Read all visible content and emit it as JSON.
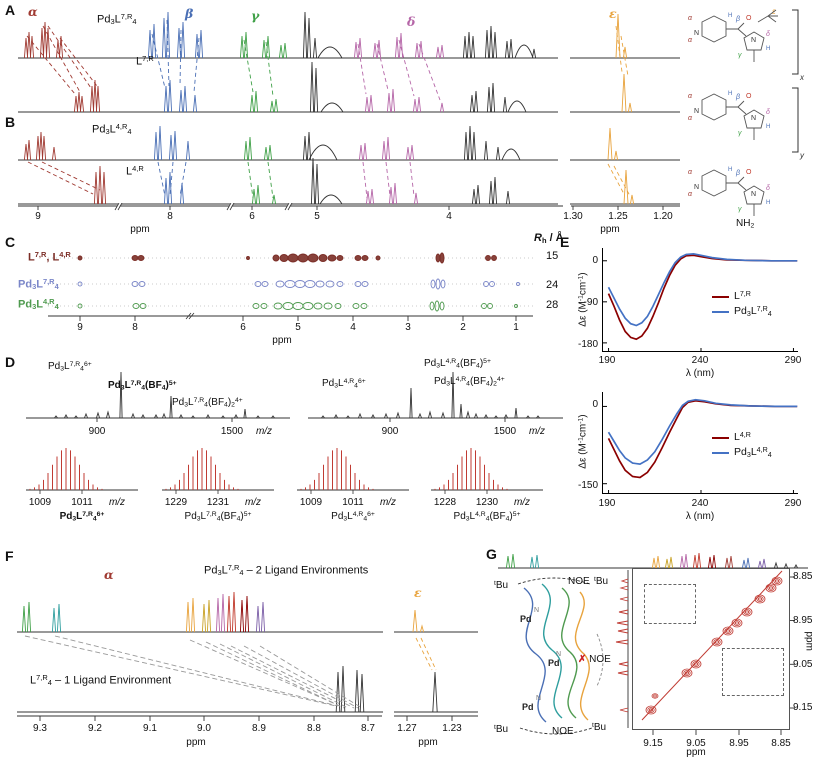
{
  "colors": {
    "alpha_red": "#a03a32",
    "beta_blue": "#4a6fb5",
    "gamma_green": "#3fa047",
    "delta_magenta": "#b565a7",
    "epsilon_orange": "#e8a33d",
    "ligand_cd_red": "#8b0000",
    "cage_cd_blue": "#4472c4",
    "dosy_ligand": "#7b2d26",
    "dosy_cage7": "#7a86c8",
    "dosy_cage4": "#4f9a4f",
    "noesy_red": "#c03b33"
  },
  "greek": {
    "alpha": "α",
    "beta": "β",
    "gamma": "γ",
    "delta": "δ",
    "epsilon": "ε"
  },
  "panels": {
    "a": "A",
    "b": "B",
    "c": "C",
    "d": "D",
    "e": "E",
    "f": "F",
    "g": "G"
  },
  "panelA": {
    "cage": "Pd<sub>3</sub>L<sup>7,R</sup><sub>4</sub>",
    "ligand": "L<sup>7,R</sup>"
  },
  "panelB": {
    "cage": "Pd<sub>3</sub>L<sup>4,R</sup><sub>4</sub>",
    "ligand": "L<sup>4,R</sup>"
  },
  "nmr_axis": {
    "ticks": [
      "9",
      "8",
      "6",
      "5",
      "4"
    ],
    "unit": "ppm",
    "eps_ticks": [
      "1.30",
      "1.25",
      "1.20"
    ]
  },
  "structure": {
    "alpha": "α",
    "beta": "β",
    "gamma": "γ",
    "delta": "δ",
    "epsilon": "ε",
    "H": "H",
    "N": "N",
    "O": "O",
    "x": "x",
    "y": "y",
    "nh2": "NH<sub>2</sub>"
  },
  "panelC": {
    "header": "<i>R</i><sub>h</sub> / Å",
    "rows": [
      {
        "label": "L<sup>7,R</sup>, L<sup>4,R</sup>",
        "rh": "15"
      },
      {
        "label": "Pd<sub>3</sub>L<sup>7,R</sup><sub>4</sub>",
        "rh": "24"
      },
      {
        "label": "Pd<sub>3</sub>L<sup>4,R</sup><sub>4</sub>",
        "rh": "28"
      }
    ],
    "ticks": [
      "9",
      "8",
      "6",
      "5",
      "4",
      "3",
      "2",
      "1"
    ],
    "unit": "ppm"
  },
  "panelD": {
    "spec1_labels": [
      "Pd<sub>3</sub>L<sup>7,R</sup><sub>4</sub><sup>6+</sup>",
      "Pd<sub>3</sub>L<sup>7,R</sup><sub>4</sub>(BF<sub>4</sub>)<sup>5+</sup>",
      "Pd<sub>3</sub>L<sup>7,R</sup><sub>4</sub>(BF<sub>4</sub>)<sub>2</sub><sup>4+</sup>"
    ],
    "spec2_labels": [
      "Pd<sub>3</sub>L<sup>4,R</sup><sub>4</sub><sup>6+</sup>",
      "Pd<sub>3</sub>L<sup>4,R</sup><sub>4</sub>(BF<sub>4</sub>)<sup>5+</sup>",
      "Pd<sub>3</sub>L<sup>4,R</sup><sub>4</sub>(BF<sub>4</sub>)<sub>2</sub><sup>4+</sup>"
    ],
    "ticks": [
      "900",
      "1500"
    ],
    "unit": "m/z",
    "zooms": [
      {
        "t1": "1009",
        "t2": "1011",
        "unit": "m/z",
        "label": "Pd<sub>3</sub>L<sup>7,R</sup><sub>4</sub><sup>6+</sup>"
      },
      {
        "t1": "1229",
        "t2": "1231",
        "unit": "m/z",
        "label": "Pd<sub>3</sub>L<sup>7,R</sup><sub>4</sub>(BF<sub>4</sub>)<sup>5+</sup>"
      },
      {
        "t1": "1009",
        "t2": "1011",
        "unit": "m/z",
        "label": "Pd<sub>3</sub>L<sup>4,R</sup><sub>4</sub><sup>6+</sup>"
      },
      {
        "t1": "1228",
        "t2": "1230",
        "unit": "m/z",
        "label": "Pd<sub>3</sub>L<sup>4,R</sup><sub>4</sub>(BF<sub>4</sub>)<sup>5+</sup>"
      }
    ]
  },
  "chart_data": [
    {
      "type": "line",
      "panel": "E-top",
      "xlabel": "λ (nm)",
      "ylabel": "Δε (M<sup>-1</sup>cm<sup>-1</sup>)",
      "xlim": [
        187,
        293
      ],
      "ylim": [
        -200,
        28
      ],
      "xtick_vals": [
        190,
        240,
        290
      ],
      "ytick_vals": [
        0,
        -90,
        -180
      ],
      "xticks": [
        "190",
        "240",
        "290"
      ],
      "yticks": [
        "0",
        "-90",
        "-180"
      ],
      "grid": false,
      "legend_position": "right",
      "series": [
        {
          "label": "L<sup>7,R</sup>",
          "color": "#8b0000",
          "points": [
            [
              190,
              -72
            ],
            [
              193,
              -100
            ],
            [
              196,
              -130
            ],
            [
              199,
              -155
            ],
            [
              202,
              -168
            ],
            [
              205,
              -172
            ],
            [
              208,
              -165
            ],
            [
              211,
              -148
            ],
            [
              214,
              -122
            ],
            [
              217,
              -92
            ],
            [
              220,
              -60
            ],
            [
              223,
              -32
            ],
            [
              226,
              -10
            ],
            [
              229,
              4
            ],
            [
              232,
              11
            ],
            [
              236,
              12
            ],
            [
              240,
              9
            ],
            [
              246,
              5
            ],
            [
              254,
              2
            ],
            [
              264,
              1
            ],
            [
              278,
              0
            ],
            [
              292,
              0
            ]
          ]
        },
        {
          "label": "Pd<sub>3</sub>L<sup>7,R</sup><sub>4</sub>",
          "color": "#4472c4",
          "points": [
            [
              190,
              -58
            ],
            [
              193,
              -82
            ],
            [
              196,
              -106
            ],
            [
              199,
              -126
            ],
            [
              202,
              -138
            ],
            [
              205,
              -142
            ],
            [
              208,
              -136
            ],
            [
              211,
              -122
            ],
            [
              214,
              -100
            ],
            [
              217,
              -74
            ],
            [
              220,
              -48
            ],
            [
              223,
              -24
            ],
            [
              226,
              -4
            ],
            [
              229,
              8
            ],
            [
              232,
              14
            ],
            [
              236,
              15
            ],
            [
              240,
              12
            ],
            [
              246,
              7
            ],
            [
              254,
              3
            ],
            [
              264,
              1
            ],
            [
              278,
              0
            ],
            [
              292,
              0
            ]
          ]
        }
      ]
    },
    {
      "type": "line",
      "panel": "E-bottom",
      "xlabel": "λ (nm)",
      "ylabel": "Δε (M<sup>-1</sup>cm<sup>-1</sup>)",
      "xlim": [
        187,
        293
      ],
      "ylim": [
        -170,
        28
      ],
      "xtick_vals": [
        190,
        240,
        290
      ],
      "ytick_vals": [
        0,
        -150
      ],
      "xticks": [
        "190",
        "240",
        "290"
      ],
      "yticks": [
        "0",
        "-150"
      ],
      "grid": false,
      "legend_position": "right",
      "series": [
        {
          "label": "L<sup>4,R</sup>",
          "color": "#8b0000",
          "points": [
            [
              190,
              -62
            ],
            [
              193,
              -84
            ],
            [
              196,
              -106
            ],
            [
              199,
              -124
            ],
            [
              203,
              -136
            ],
            [
              207,
              -138
            ],
            [
              211,
              -128
            ],
            [
              215,
              -108
            ],
            [
              219,
              -80
            ],
            [
              223,
              -50
            ],
            [
              227,
              -22
            ],
            [
              230,
              -2
            ],
            [
              233,
              8
            ],
            [
              237,
              11
            ],
            [
              242,
              9
            ],
            [
              248,
              5
            ],
            [
              256,
              2
            ],
            [
              266,
              1
            ],
            [
              280,
              0
            ],
            [
              292,
              0
            ]
          ]
        },
        {
          "label": "Pd<sub>3</sub>L<sup>4,R</sup><sub>4</sub>",
          "color": "#4472c4",
          "points": [
            [
              190,
              -50
            ],
            [
              193,
              -68
            ],
            [
              196,
              -86
            ],
            [
              199,
              -100
            ],
            [
              203,
              -110
            ],
            [
              207,
              -112
            ],
            [
              211,
              -104
            ],
            [
              215,
              -88
            ],
            [
              219,
              -64
            ],
            [
              223,
              -38
            ],
            [
              227,
              -14
            ],
            [
              230,
              2
            ],
            [
              233,
              10
            ],
            [
              237,
              13
            ],
            [
              242,
              11
            ],
            [
              248,
              6
            ],
            [
              256,
              3
            ],
            [
              266,
              1
            ],
            [
              280,
              0
            ],
            [
              292,
              0
            ]
          ]
        }
      ]
    }
  ],
  "panelF": {
    "alpha": "α",
    "epsilon": "ε",
    "top_label": "Pd<sub>3</sub>L<sup>7,R</sup><sub>4</sub> – 2 Ligand Environments",
    "bottom_label": "L<sup>7,R</sup><sub>4</sub> – 1 Ligand Environment",
    "ticks": [
      "9.3",
      "9.2",
      "9.1",
      "9.0",
      "8.9",
      "8.8",
      "8.7"
    ],
    "unit": "ppm",
    "eps_ticks": [
      "1.27",
      "1.23"
    ]
  },
  "panelG": {
    "tbu": "<sup>t</sup>Bu",
    "pd": "Pd",
    "n": "N",
    "noe": "NOE",
    "cross": "✗",
    "xticks": [
      "9.15",
      "9.05",
      "8.95",
      "8.85"
    ],
    "yticks": [
      "8.85",
      "8.95",
      "9.05",
      "9.15"
    ],
    "unit": "ppm"
  }
}
